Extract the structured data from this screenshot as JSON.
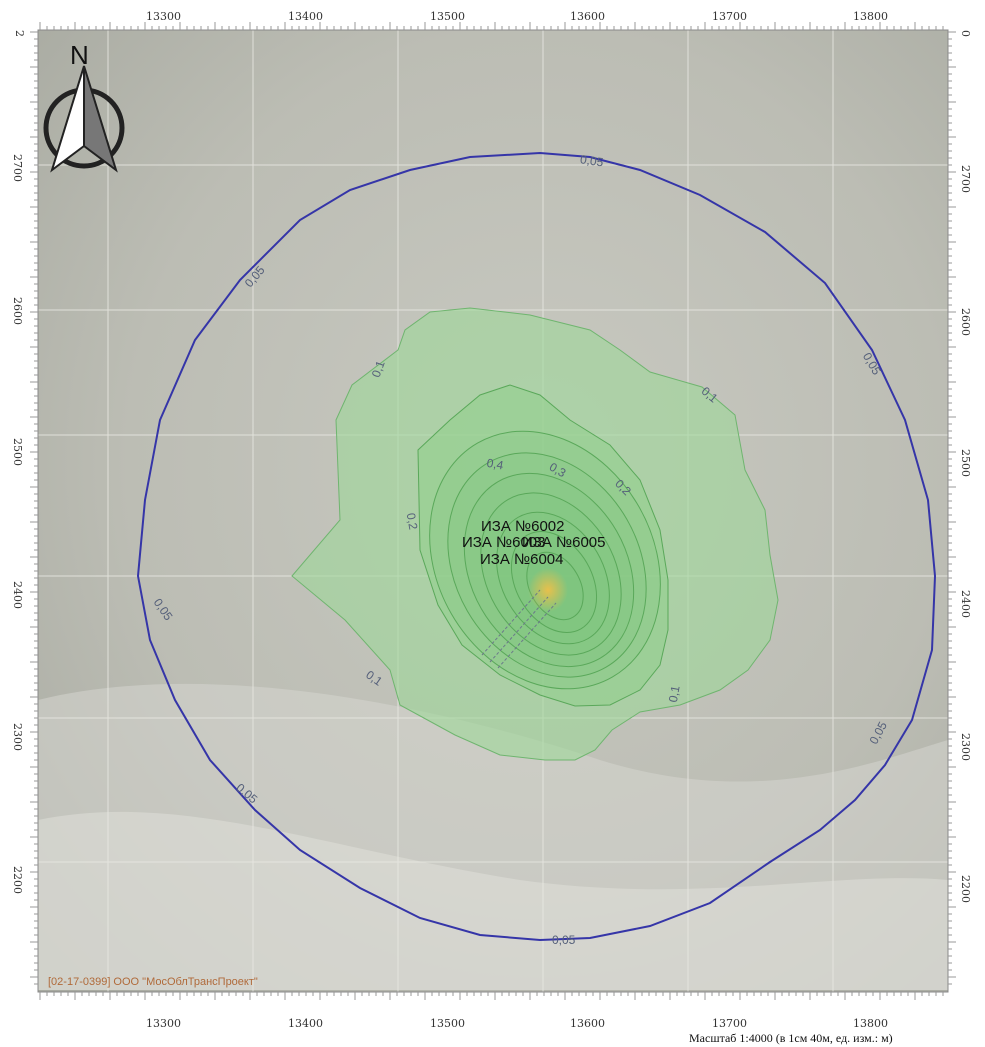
{
  "map": {
    "x_ticks": [
      "13300",
      "13400",
      "13500",
      "13600",
      "13700",
      "13800"
    ],
    "y_ticks": [
      "2",
      "2700",
      "2600",
      "2500",
      "2400",
      "2300",
      "2200"
    ],
    "y_ticks_right": [
      "0",
      "2700",
      "2600",
      "2500",
      "2400",
      "2300",
      "2200"
    ],
    "north_label": "N",
    "contour_levels": [
      "0,05",
      "0,1",
      "0,2",
      "0,3",
      "0,4"
    ],
    "contour_labels": {
      "c005_top": "0,05",
      "c005_upper_left": "0,05",
      "c005_upper_right": "0,05",
      "c005_left": "0,05",
      "c005_lower_left": "0,05",
      "c005_right": "0,05",
      "c005_bottom": "0,05",
      "c01_upper_left": "0,1",
      "c01_upper_right": "0,1",
      "c01_lower_left": "0,1",
      "c01_lower_right": "0,1",
      "c02_left": "0,2",
      "c02_upper_right": "0,2",
      "c03": "0,3",
      "c04": "0,4"
    },
    "sources": {
      "s6002": "ИЗА №6002",
      "s_overlap": "ИЗА №6003",
      "s6005": "ИЗА №6005",
      "s6004": "ИЗА №6004"
    },
    "copyright": "[02-17-0399] ООО \"МосОблТрансПроект\"",
    "scale": "Масштаб 1:4000 (в 1см 40м, ед. изм.: м)",
    "colors": {
      "outer_contour": "#3535a8",
      "zone_fill": "#9ed79a",
      "inner_lines": "#5aa85a",
      "hotspot": "#d9b24a"
    }
  }
}
